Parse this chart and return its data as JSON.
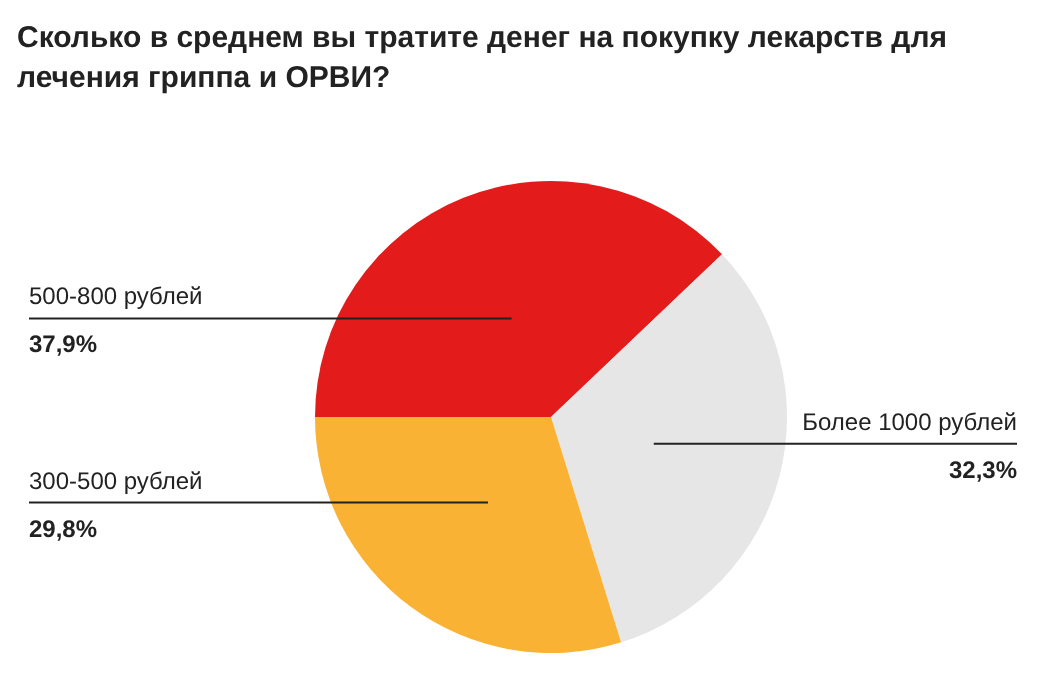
{
  "chart_data": {
    "type": "pie",
    "title": "Сколько в среднем вы тратите денег на покупку лекарств для лечения гриппа и ОРВИ?",
    "categories": [
      "500-800 рублей",
      "Более 1000 рублей",
      "300-500 рублей"
    ],
    "values": [
      37.9,
      32.3,
      29.8
    ],
    "value_labels": [
      "37,9%",
      "32,3%",
      "29,8%"
    ],
    "colors": [
      "#e31b1b",
      "#e6e6e6",
      "#f9b234"
    ]
  }
}
